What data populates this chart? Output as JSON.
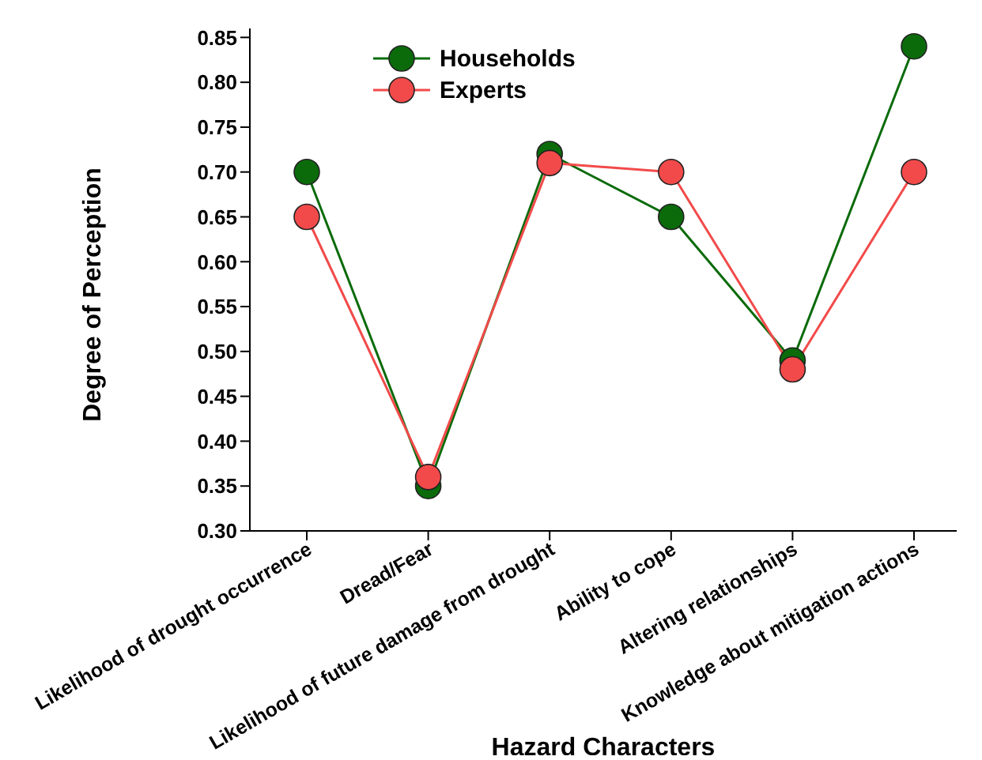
{
  "chart_data": {
    "type": "line",
    "xlabel": "Hazard Characters",
    "ylabel": "Degree of Perception",
    "categories": [
      "Likelihood of drought occurrence",
      "Dread/Fear",
      "Likelihood of future damage from drought",
      "Ability to cope",
      "Altering relationships",
      "Knowledge about mitigation actions"
    ],
    "series": [
      {
        "name": "Households",
        "color": "#0b6b0b",
        "values": [
          0.7,
          0.35,
          0.72,
          0.65,
          0.49,
          0.84
        ]
      },
      {
        "name": "Experts",
        "color": "#f24a4a",
        "values": [
          0.65,
          0.36,
          0.71,
          0.7,
          0.48,
          0.7
        ]
      }
    ],
    "ylim": [
      0.3,
      0.86
    ],
    "yticks": [
      {
        "value": 0.3,
        "label": "0.30"
      },
      {
        "value": 0.35,
        "label": "0.35"
      },
      {
        "value": 0.4,
        "label": "0.40"
      },
      {
        "value": 0.45,
        "label": "0.45"
      },
      {
        "value": 0.5,
        "label": "0.50"
      },
      {
        "value": 0.55,
        "label": "0.55"
      },
      {
        "value": 0.6,
        "label": "0.60"
      },
      {
        "value": 0.65,
        "label": "0.65"
      },
      {
        "value": 0.7,
        "label": "0.70"
      },
      {
        "value": 0.75,
        "label": "0.75"
      },
      {
        "value": 0.8,
        "label": "0.80"
      },
      {
        "value": 0.85,
        "label": "0.85"
      }
    ],
    "marker": "circle",
    "legend": "top left",
    "grid": false
  }
}
